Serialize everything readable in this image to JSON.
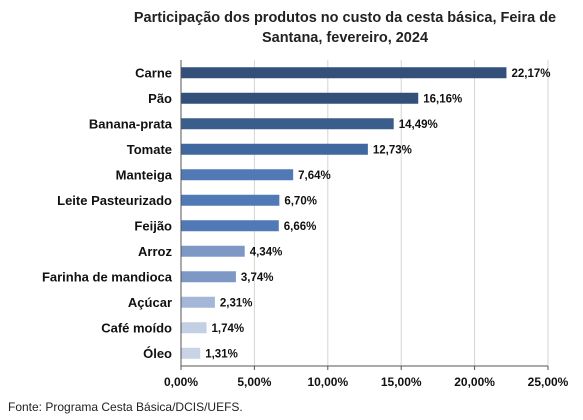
{
  "chart_data": {
    "type": "bar",
    "orientation": "horizontal",
    "title": "Participação dos produtos no custo da cesta básica, Feira de Santana, fevereiro, 2024",
    "categories": [
      "Carne",
      "Pão",
      "Banana-prata",
      "Tomate",
      "Manteiga",
      "Leite Pasteurizado",
      "Feijão",
      "Arroz",
      "Farinha de mandioca",
      "Açúcar",
      "Café moído",
      "Óleo"
    ],
    "values": [
      22.17,
      16.16,
      14.49,
      12.73,
      7.64,
      6.7,
      6.66,
      4.34,
      3.74,
      2.31,
      1.74,
      1.31
    ],
    "data_labels": [
      "22,17%",
      "16,16%",
      "14,49%",
      "12,73%",
      "7,64%",
      "6,70%",
      "6,66%",
      "4,34%",
      "3,74%",
      "2,31%",
      "1,74%",
      "1,31%"
    ],
    "xlim": [
      0,
      25
    ],
    "xticks": [
      0,
      5,
      10,
      15,
      20,
      25
    ],
    "xtick_labels": [
      "0,00%",
      "5,00%",
      "10,00%",
      "15,00%",
      "20,00%",
      "25,00%"
    ],
    "grid": true,
    "colors": [
      "#33507a",
      "#33507a",
      "#3a5d8c",
      "#3f67a0",
      "#5179b5",
      "#5179b5",
      "#5179b5",
      "#7d98c5",
      "#7d98c5",
      "#a4b7d8",
      "#c3cfe4",
      "#c8d3e6"
    ]
  },
  "source": "Fonte: Programa Cesta Básica/DCIS/UEFS."
}
